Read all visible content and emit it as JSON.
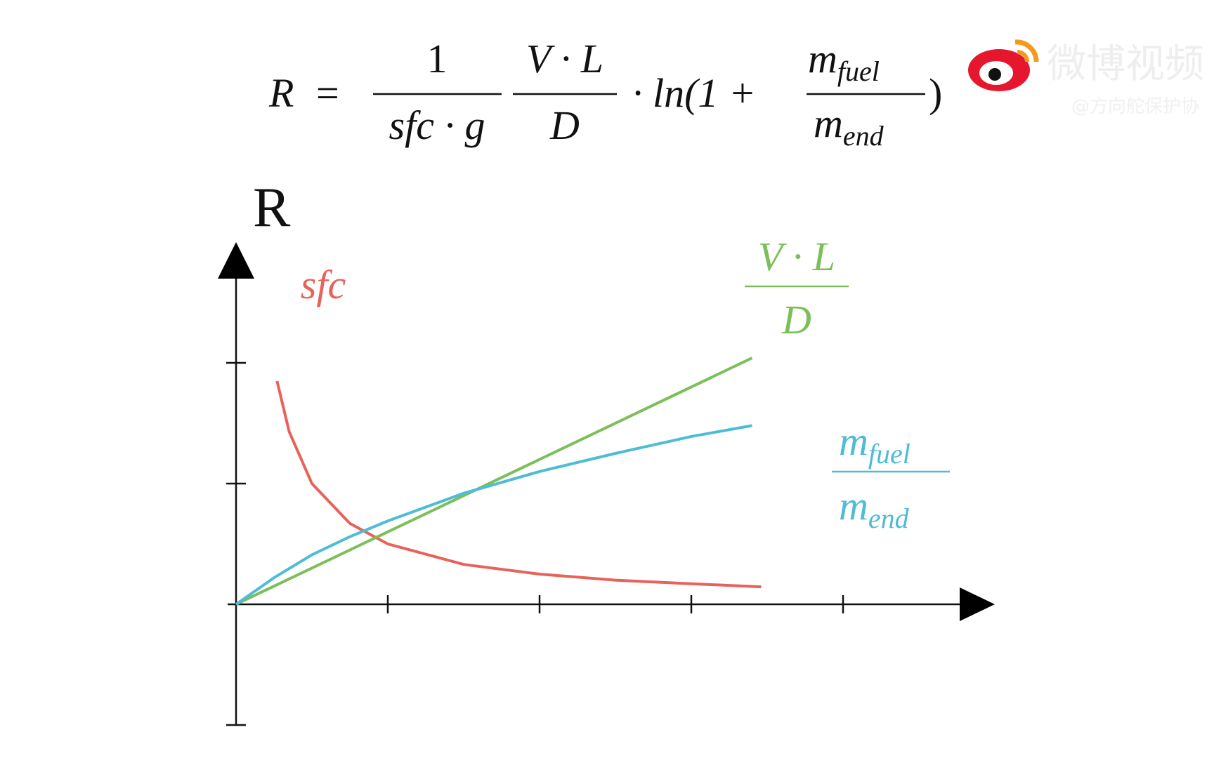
{
  "formula": {
    "lhs": "R",
    "equals": "=",
    "f1": {
      "num": "1",
      "den": "sfc · g"
    },
    "f2": {
      "num": "V · L",
      "den": "D"
    },
    "mid": "· ln(1 +",
    "f3": {
      "num": {
        "base": "m",
        "sub": "fuel"
      },
      "den": {
        "base": "m",
        "sub": "end"
      }
    },
    "close": ")"
  },
  "watermark": {
    "brand": "微博视频",
    "handle": "@方向舵保护协"
  },
  "chart_data": {
    "type": "line",
    "y_label": "R",
    "xlim": [
      0,
      5
    ],
    "ylim": [
      -1,
      3
    ],
    "xticks": [
      1,
      2,
      3,
      4
    ],
    "yticks": [
      -1,
      1,
      2
    ],
    "series": [
      {
        "label": {
          "text": "sfc"
        },
        "color": "#e8625a",
        "x": [
          0.27,
          0.35,
          0.5,
          0.75,
          1,
          1.5,
          2,
          2.5,
          3,
          3.46
        ],
        "values": [
          1.85,
          1.43,
          1.0,
          0.67,
          0.5,
          0.33,
          0.25,
          0.2,
          0.17,
          0.145
        ]
      },
      {
        "label": {
          "num": "V · L",
          "den": "D"
        },
        "color": "#7cbf5a",
        "x": [
          0,
          3.4
        ],
        "values": [
          0,
          2.04
        ]
      },
      {
        "label": {
          "num": {
            "base": "m",
            "sub": "fuel"
          },
          "den": {
            "base": "m",
            "sub": "end"
          }
        },
        "color": "#4fbcd6",
        "x": [
          0,
          0.25,
          0.5,
          0.75,
          1,
          1.5,
          2,
          2.5,
          3,
          3.4
        ],
        "values": [
          0,
          0.22,
          0.41,
          0.56,
          0.69,
          0.92,
          1.1,
          1.25,
          1.39,
          1.48
        ]
      }
    ]
  }
}
